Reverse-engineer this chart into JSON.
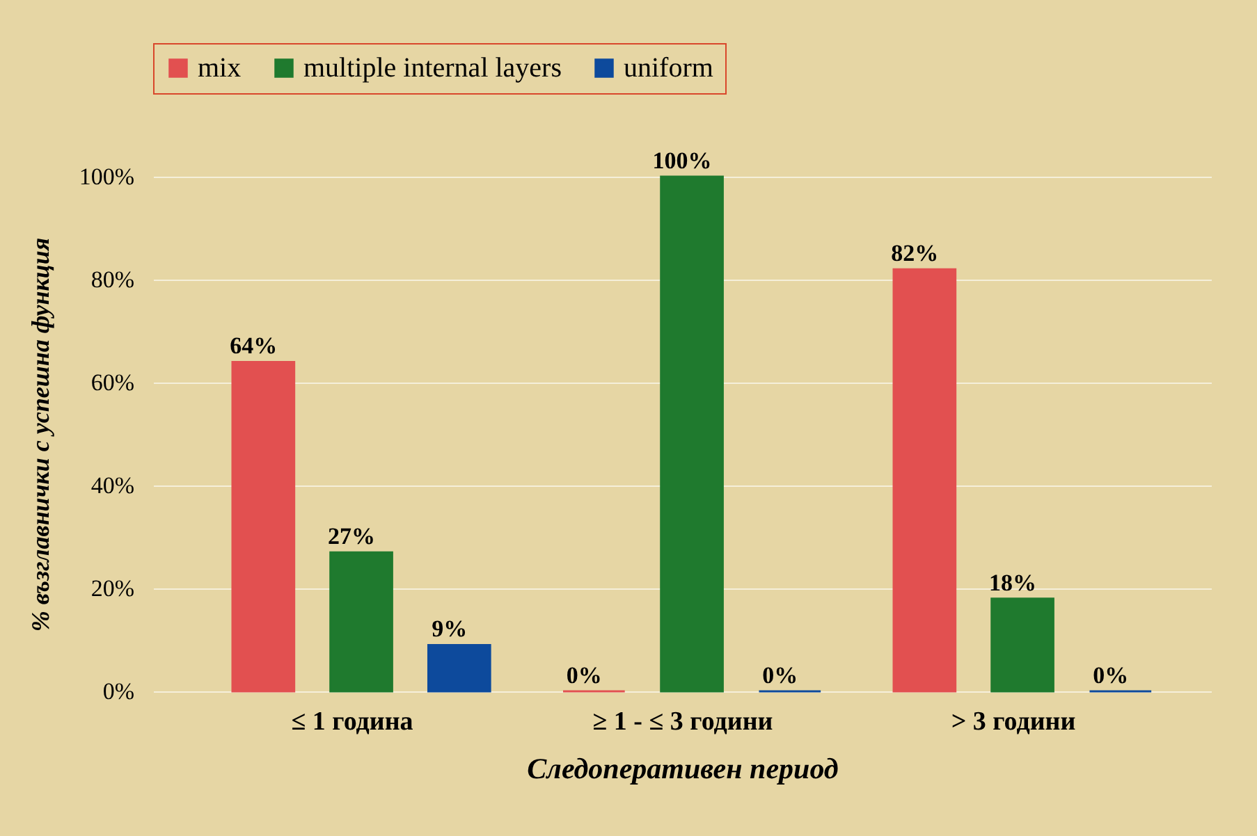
{
  "chart_data": {
    "type": "bar",
    "categories": [
      "≤ 1 година",
      "≥ 1 - ≤ 3 години",
      "> 3 години"
    ],
    "series": [
      {
        "name": "mix",
        "color": "#e25050",
        "values": [
          64,
          0,
          82
        ],
        "value_labels": [
          "64%",
          "0%",
          "82%"
        ]
      },
      {
        "name": "multiple internal layers",
        "color": "#1f7a2e",
        "values": [
          27,
          100,
          18
        ],
        "value_labels": [
          "27%",
          "100%",
          "18%"
        ]
      },
      {
        "name": "uniform",
        "color": "#0d4a9c",
        "values": [
          9,
          0,
          0
        ],
        "value_labels": [
          "9%",
          "0%",
          "0%"
        ]
      }
    ],
    "ylim": [
      0,
      100
    ],
    "yticks": [
      {
        "value": 0,
        "label": "0%"
      },
      {
        "value": 20,
        "label": "20%"
      },
      {
        "value": 40,
        "label": "40%"
      },
      {
        "value": 60,
        "label": "60%"
      },
      {
        "value": 80,
        "label": "80%"
      },
      {
        "value": 100,
        "label": "100%"
      }
    ],
    "ylabel": "% възглавнички с успешна функция",
    "xlabel": "Следоперативен период",
    "grid": "y",
    "legend": "top"
  }
}
